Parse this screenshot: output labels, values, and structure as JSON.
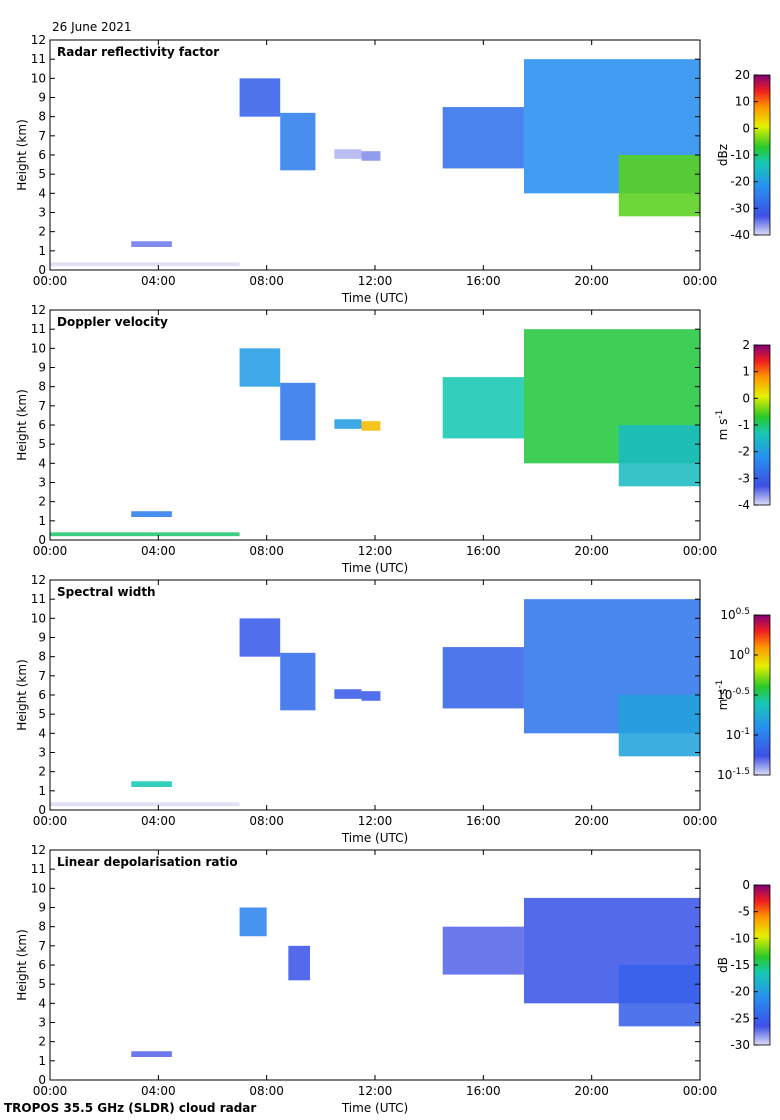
{
  "date_label": "26 June 2021",
  "footer_label": "TROPOS 35.5 GHz (SLDR) cloud radar",
  "chart_data": [
    {
      "type": "heatmap",
      "title": "Radar reflectivity factor",
      "xlabel": "Time (UTC)",
      "ylabel": "Height (km)",
      "x_ticks": [
        "00:00",
        "04:00",
        "08:00",
        "12:00",
        "16:00",
        "20:00",
        "00:00"
      ],
      "y_ticks": [
        "0",
        "1",
        "2",
        "3",
        "4",
        "5",
        "6",
        "7",
        "8",
        "9",
        "10",
        "11",
        "12"
      ],
      "xlim_hours": [
        0,
        24
      ],
      "ylim_km": [
        0,
        12
      ],
      "colorbar": {
        "ticks": [
          "20",
          "10",
          "0",
          "-10",
          "-20",
          "-30",
          "-40"
        ],
        "unit": "dBz",
        "range": [
          -40,
          20
        ]
      },
      "echoes": [
        {
          "t0": 0.0,
          "t1": 7.0,
          "h0": 0.2,
          "h1": 0.4,
          "value": -40,
          "note": "ground clutter"
        },
        {
          "t0": 3.0,
          "t1": 4.5,
          "h0": 1.2,
          "h1": 1.5,
          "value": -35
        },
        {
          "t0": 7.0,
          "t1": 8.5,
          "h0": 8.0,
          "h1": 10.0,
          "value": -30
        },
        {
          "t0": 8.5,
          "t1": 9.8,
          "h0": 5.2,
          "h1": 8.2,
          "value": -25
        },
        {
          "t0": 10.5,
          "t1": 11.5,
          "h0": 5.8,
          "h1": 6.3,
          "value": -38
        },
        {
          "t0": 11.5,
          "t1": 12.2,
          "h0": 5.7,
          "h1": 6.2,
          "value": -36
        },
        {
          "t0": 14.5,
          "t1": 17.5,
          "h0": 5.3,
          "h1": 8.5,
          "value": -27
        },
        {
          "t0": 17.5,
          "t1": 24.0,
          "h0": 4.0,
          "h1": 11.0,
          "value": -22
        },
        {
          "t0": 21.0,
          "t1": 24.0,
          "h0": 2.8,
          "h1": 6.0,
          "value": -5
        }
      ]
    },
    {
      "type": "heatmap",
      "title": "Doppler velocity",
      "xlabel": "Time (UTC)",
      "ylabel": "Height (km)",
      "x_ticks": [
        "00:00",
        "04:00",
        "08:00",
        "12:00",
        "16:00",
        "20:00",
        "00:00"
      ],
      "y_ticks": [
        "0",
        "1",
        "2",
        "3",
        "4",
        "5",
        "6",
        "7",
        "8",
        "9",
        "10",
        "11",
        "12"
      ],
      "xlim_hours": [
        0,
        24
      ],
      "ylim_km": [
        0,
        12
      ],
      "colorbar": {
        "ticks": [
          "2",
          "1",
          "0",
          "-1",
          "-2",
          "-3",
          "-4"
        ],
        "unit": "m s-1",
        "range": [
          -4,
          2
        ]
      },
      "echoes": [
        {
          "t0": 0.0,
          "t1": 7.0,
          "h0": 0.2,
          "h1": 0.4,
          "value": -1.0
        },
        {
          "t0": 3.0,
          "t1": 4.5,
          "h0": 1.2,
          "h1": 1.5,
          "value": -2.5
        },
        {
          "t0": 7.0,
          "t1": 8.5,
          "h0": 8.0,
          "h1": 10.0,
          "value": -2.0
        },
        {
          "t0": 8.5,
          "t1": 9.8,
          "h0": 5.2,
          "h1": 8.2,
          "value": -2.6
        },
        {
          "t0": 10.5,
          "t1": 11.5,
          "h0": 5.8,
          "h1": 6.3,
          "value": -2.0
        },
        {
          "t0": 11.5,
          "t1": 12.2,
          "h0": 5.7,
          "h1": 6.2,
          "value": 0.5
        },
        {
          "t0": 14.5,
          "t1": 17.5,
          "h0": 5.3,
          "h1": 8.5,
          "value": -1.3
        },
        {
          "t0": 17.5,
          "t1": 24.0,
          "h0": 4.0,
          "h1": 11.0,
          "value": -0.8
        },
        {
          "t0": 21.0,
          "t1": 24.0,
          "h0": 2.8,
          "h1": 6.0,
          "value": -1.5
        }
      ]
    },
    {
      "type": "heatmap",
      "title": "Spectral width",
      "xlabel": "Time (UTC)",
      "ylabel": "Height (km)",
      "x_ticks": [
        "00:00",
        "04:00",
        "08:00",
        "12:00",
        "16:00",
        "20:00",
        "00:00"
      ],
      "y_ticks": [
        "0",
        "1",
        "2",
        "3",
        "4",
        "5",
        "6",
        "7",
        "8",
        "9",
        "10",
        "11",
        "12"
      ],
      "xlim_hours": [
        0,
        24
      ],
      "ylim_km": [
        0,
        12
      ],
      "colorbar": {
        "ticks": [
          "10^0.5",
          "10^0",
          "10^-0.5",
          "10^-1",
          "10^-1.5"
        ],
        "unit": "m s-1",
        "range_log10": [
          -1.5,
          0.5
        ]
      },
      "echoes": [
        {
          "t0": 0.0,
          "t1": 7.0,
          "h0": 0.2,
          "h1": 0.4,
          "value": -1.5
        },
        {
          "t0": 3.0,
          "t1": 4.5,
          "h0": 1.2,
          "h1": 1.5,
          "value": -0.6
        },
        {
          "t0": 7.0,
          "t1": 8.5,
          "h0": 8.0,
          "h1": 10.0,
          "value": -1.2
        },
        {
          "t0": 8.5,
          "t1": 9.8,
          "h0": 5.2,
          "h1": 8.2,
          "value": -1.1
        },
        {
          "t0": 10.5,
          "t1": 11.5,
          "h0": 5.8,
          "h1": 6.3,
          "value": -1.2
        },
        {
          "t0": 11.5,
          "t1": 12.2,
          "h0": 5.7,
          "h1": 6.2,
          "value": -1.2
        },
        {
          "t0": 14.5,
          "t1": 17.5,
          "h0": 5.3,
          "h1": 8.5,
          "value": -1.15
        },
        {
          "t0": 17.5,
          "t1": 24.0,
          "h0": 4.0,
          "h1": 11.0,
          "value": -1.05
        },
        {
          "t0": 21.0,
          "t1": 24.0,
          "h0": 2.8,
          "h1": 6.0,
          "value": -0.8
        }
      ]
    },
    {
      "type": "heatmap",
      "title": "Linear depolarisation ratio",
      "xlabel": "Time (UTC)",
      "ylabel": "Height (km)",
      "x_ticks": [
        "00:00",
        "04:00",
        "08:00",
        "12:00",
        "16:00",
        "20:00",
        "00:00"
      ],
      "y_ticks": [
        "0",
        "1",
        "2",
        "3",
        "4",
        "5",
        "6",
        "7",
        "8",
        "9",
        "10",
        "11",
        "12"
      ],
      "xlim_hours": [
        0,
        24
      ],
      "ylim_km": [
        0,
        12
      ],
      "colorbar": {
        "ticks": [
          "0",
          "-5",
          "-10",
          "-15",
          "-20",
          "-25",
          "-30"
        ],
        "unit": "dB",
        "range": [
          -30,
          0
        ]
      },
      "echoes": [
        {
          "t0": 3.0,
          "t1": 4.5,
          "h0": 1.2,
          "h1": 1.5,
          "value": -27
        },
        {
          "t0": 7.0,
          "t1": 8.0,
          "h0": 7.5,
          "h1": 9.0,
          "value": -22
        },
        {
          "t0": 8.8,
          "t1": 9.6,
          "h0": 5.2,
          "h1": 7.0,
          "value": -26
        },
        {
          "t0": 14.5,
          "t1": 17.5,
          "h0": 5.5,
          "h1": 8.0,
          "value": -27
        },
        {
          "t0": 17.5,
          "t1": 24.0,
          "h0": 4.0,
          "h1": 9.5,
          "value": -26
        },
        {
          "t0": 21.0,
          "t1": 24.0,
          "h0": 2.8,
          "h1": 6.0,
          "value": -25
        }
      ]
    }
  ]
}
